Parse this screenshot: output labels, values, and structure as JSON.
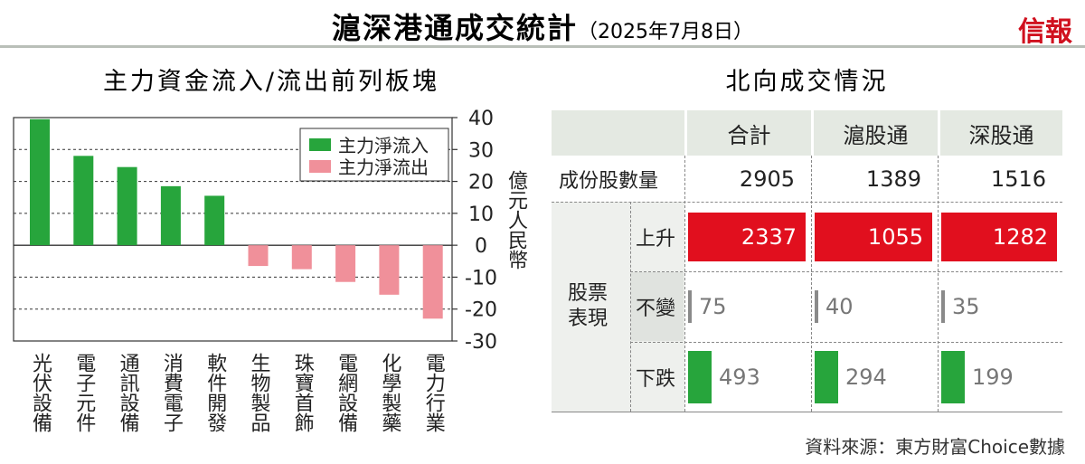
{
  "header": {
    "title": "滬深港通成交統計",
    "date": "（2025年7月8日）",
    "logo": "信報"
  },
  "chart_data": {
    "type": "bar",
    "title": "主力資金流入/流出前列板塊",
    "y_label": "億元人民幣",
    "categories": [
      "光伏設備",
      "電子元件",
      "通訊設備",
      "消費電子",
      "軟件開發",
      "生物製品",
      "珠寶首飾",
      "電網設備",
      "化學製藥",
      "電力行業"
    ],
    "series": [
      {
        "name": "主力淨流入",
        "color": "#27a53c",
        "values": [
          39.5,
          28,
          24.5,
          18.5,
          15.5,
          null,
          null,
          null,
          null,
          null
        ]
      },
      {
        "name": "主力淨流出",
        "color": "#f0909a",
        "values": [
          null,
          null,
          null,
          null,
          null,
          -6.5,
          -7.5,
          -11.5,
          -15.5,
          -23
        ]
      }
    ],
    "ylim": [
      -30,
      40
    ],
    "yticks": [
      -30,
      -20,
      -10,
      0,
      10,
      20,
      30,
      40
    ],
    "grid": true,
    "legend": "upper right"
  },
  "table": {
    "title": "北向成交情況",
    "columns": [
      "合計",
      "滬股通",
      "深股通"
    ],
    "rows": [
      {
        "label": "成份股數量",
        "values": [
          2905,
          1389,
          1516
        ]
      }
    ],
    "group": {
      "label": "股票表現",
      "rows": [
        {
          "label": "上升",
          "values": [
            2337,
            1055,
            1282
          ]
        },
        {
          "label": "不變",
          "values": [
            75,
            40,
            35
          ]
        },
        {
          "label": "下跌",
          "values": [
            493,
            294,
            199
          ]
        }
      ]
    }
  },
  "source": "資料來源：東方財富Choice數據"
}
